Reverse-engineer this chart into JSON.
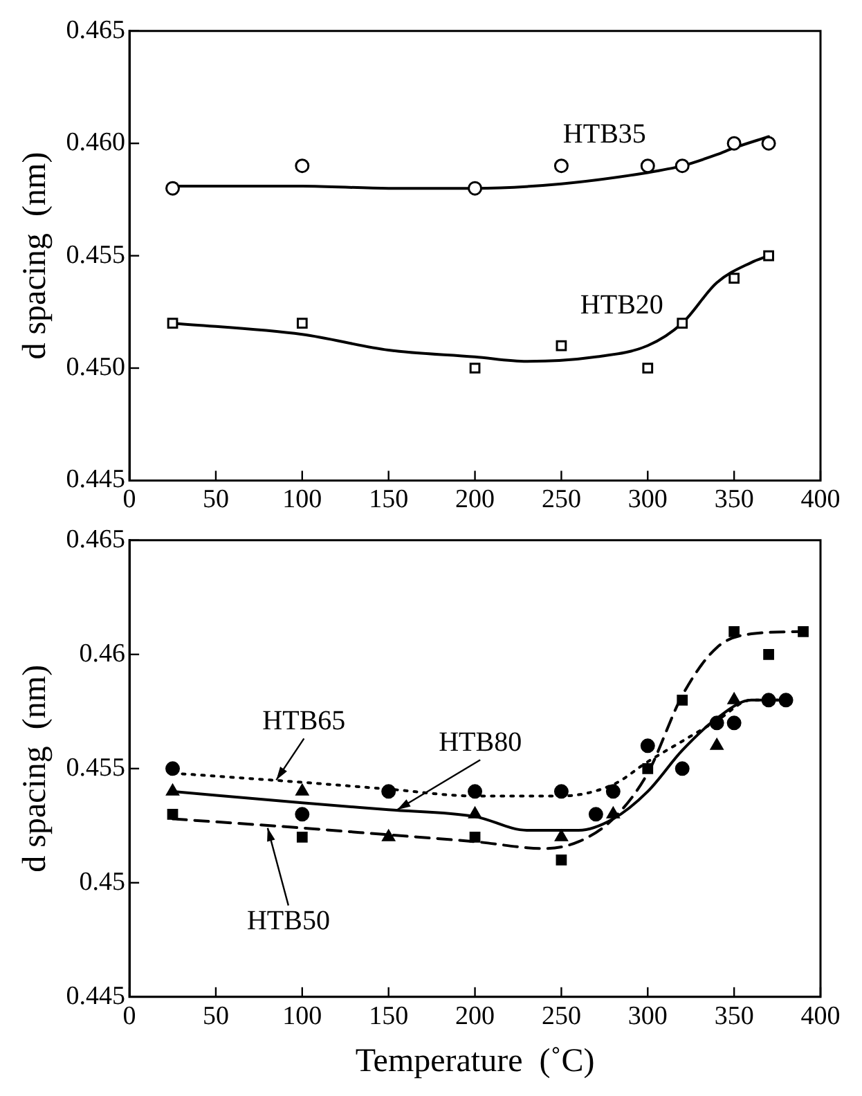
{
  "chart_data": [
    {
      "type": "scatter",
      "ylabel": "d spacing  (nm)",
      "xlim": [
        0,
        400
      ],
      "xticks": [
        0,
        50,
        100,
        150,
        200,
        250,
        300,
        350,
        400
      ],
      "ylim": [
        0.445,
        0.465
      ],
      "yticks": [
        0.445,
        {
          "value": 0.45,
          "label": "0.450"
        },
        0.455,
        {
          "value": 0.46,
          "label": "0.460"
        },
        0.465
      ],
      "grid": false,
      "legend": false,
      "annotations": [
        {
          "text": "HTB35",
          "x": 275,
          "y": 0.4584
        },
        {
          "text": "HTB20",
          "x": 285,
          "y": 0.4506
        }
      ],
      "series": [
        {
          "type": "scatter",
          "marker": "circle",
          "color": "#000000",
          "x": [
            25,
            100,
            200,
            250,
            300,
            320,
            350,
            370
          ],
          "values": [
            0.458,
            0.459,
            0.458,
            0.459,
            0.459,
            0.459,
            0.46,
            0.46
          ]
        },
        {
          "type": "scatter",
          "marker": "square",
          "color": "#000000",
          "x": [
            25,
            100,
            200,
            250,
            300,
            320,
            350,
            370
          ],
          "values": [
            0.452,
            0.452,
            0.45,
            0.451,
            0.45,
            0.452,
            0.454,
            0.455
          ]
        },
        {
          "type": "line",
          "marker": "none",
          "line_style": "solid",
          "color": "#000000",
          "x": [
            25,
            100,
            150,
            200,
            250,
            300,
            320,
            340,
            350,
            370
          ],
          "values": [
            0.4581,
            0.4581,
            0.458,
            0.458,
            0.4582,
            0.4587,
            0.459,
            0.4595,
            0.4598,
            0.4603
          ]
        },
        {
          "type": "line",
          "marker": "none",
          "line_style": "solid",
          "color": "#000000",
          "x": [
            25,
            100,
            150,
            200,
            230,
            270,
            300,
            320,
            340,
            360,
            370
          ],
          "values": [
            0.452,
            0.4515,
            0.4508,
            0.4505,
            0.4503,
            0.4505,
            0.451,
            0.452,
            0.4538,
            0.4547,
            0.455
          ]
        }
      ]
    },
    {
      "type": "scatter",
      "xlabel": "Temperature  (˚C)",
      "ylabel": "d spacing  (nm)",
      "xlim": [
        0,
        400
      ],
      "xticks": [
        0,
        50,
        100,
        150,
        200,
        250,
        300,
        350,
        400
      ],
      "ylim": [
        0.445,
        0.465
      ],
      "yticks": [
        0.445,
        0.45,
        0.455,
        0.46,
        0.465
      ],
      "grid": false,
      "legend": false,
      "annotations": [
        {
          "text": "HTB65",
          "x": 85,
          "y": 0.4545
        },
        {
          "text": "HTB80",
          "x": 155,
          "y": 0.4532
        },
        {
          "text": "HTB50",
          "x": 80,
          "y": 0.4524
        }
      ],
      "series": [
        {
          "type": "scatter",
          "marker": "circle",
          "color": "#000000",
          "x": [
            25,
            100,
            150,
            200,
            250,
            270,
            280,
            300,
            320,
            340,
            350,
            370,
            380
          ],
          "values": [
            0.455,
            0.453,
            0.454,
            0.454,
            0.454,
            0.453,
            0.454,
            0.456,
            0.455,
            0.457,
            0.457,
            0.458,
            0.458
          ]
        },
        {
          "type": "scatter",
          "marker": "triangle",
          "color": "#000000",
          "x": [
            25,
            100,
            150,
            200,
            250,
            280,
            340,
            350
          ],
          "values": [
            0.454,
            0.454,
            0.452,
            0.453,
            0.452,
            0.453,
            0.456,
            0.458
          ]
        },
        {
          "type": "scatter",
          "marker": "square",
          "color": "#000000",
          "x": [
            25,
            100,
            200,
            250,
            300,
            320,
            350,
            370,
            390
          ],
          "values": [
            0.453,
            0.452,
            0.452,
            0.451,
            0.455,
            0.458,
            0.461,
            0.46,
            0.461
          ]
        },
        {
          "type": "line",
          "marker": "none",
          "line_style": "dotted",
          "color": "#000000",
          "x": [
            25,
            100,
            150,
            200,
            250,
            280,
            300,
            320,
            340,
            360,
            380
          ],
          "values": [
            0.4548,
            0.4544,
            0.4541,
            0.4538,
            0.4538,
            0.4543,
            0.4553,
            0.4562,
            0.4571,
            0.458,
            0.458
          ]
        },
        {
          "type": "line",
          "marker": "none",
          "line_style": "solid",
          "color": "#000000",
          "x": [
            25,
            100,
            150,
            200,
            230,
            260,
            280,
            300,
            320,
            340,
            360,
            380
          ],
          "values": [
            0.454,
            0.4535,
            0.4532,
            0.4529,
            0.4523,
            0.4523,
            0.4528,
            0.454,
            0.4558,
            0.4572,
            0.458,
            0.458
          ]
        },
        {
          "type": "line",
          "marker": "none",
          "line_style": "dashed",
          "color": "#000000",
          "x": [
            25,
            100,
            150,
            200,
            240,
            260,
            280,
            300,
            320,
            340,
            360,
            390
          ],
          "values": [
            0.4528,
            0.4524,
            0.4521,
            0.4518,
            0.4515,
            0.4518,
            0.4528,
            0.4548,
            0.4582,
            0.4603,
            0.4609,
            0.461
          ]
        }
      ]
    }
  ]
}
